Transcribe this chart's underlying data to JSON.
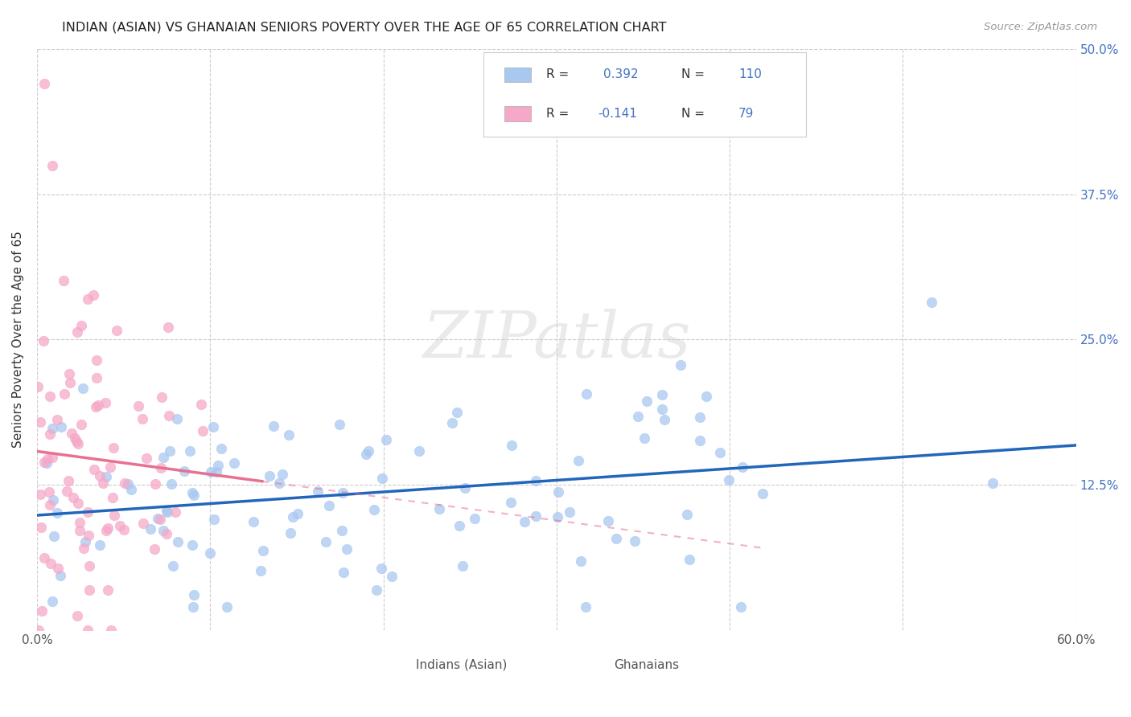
{
  "title": "INDIAN (ASIAN) VS GHANAIAN SENIORS POVERTY OVER THE AGE OF 65 CORRELATION CHART",
  "source": "Source: ZipAtlas.com",
  "ylabel": "Seniors Poverty Over the Age of 65",
  "xlim": [
    0.0,
    0.6
  ],
  "ylim": [
    0.0,
    0.5
  ],
  "ytick_positions": [
    0.125,
    0.25,
    0.375,
    0.5
  ],
  "ytick_labels": [
    "12.5%",
    "25.0%",
    "37.5%",
    "50.0%"
  ],
  "indian_color": "#a8c8f0",
  "ghanaian_color": "#f5a8c8",
  "indian_line_color": "#2266bb",
  "ghanaian_line_color": "#e87090",
  "R_indian": 0.392,
  "N_indian": 110,
  "R_ghanaian": -0.141,
  "N_ghanaian": 79,
  "background_color": "#ffffff",
  "grid_color": "#cccccc"
}
